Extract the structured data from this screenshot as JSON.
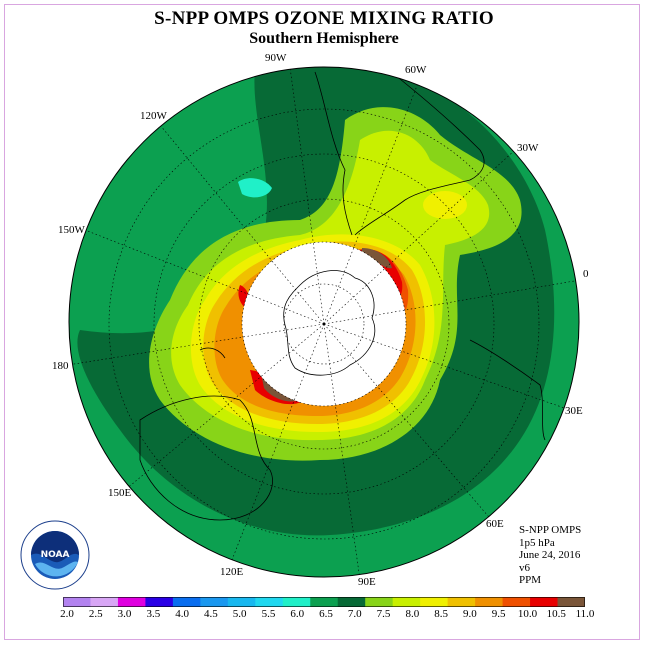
{
  "header": {
    "title": "S-NPP OMPS OZONE MIXING RATIO",
    "subtitle": "Southern Hemisphere"
  },
  "longitude_labels": {
    "w90": "90W",
    "w60": "60W",
    "w30": "30W",
    "zero": "0",
    "w120": "120W",
    "w150": "150W",
    "l180": "180",
    "e30": "30E",
    "e60": "60E",
    "e90": "90E",
    "e120": "120E",
    "e150": "150E"
  },
  "info": {
    "instrument": "S-NPP OMPS",
    "level": "1p5 hPa",
    "date": "June 24, 2016",
    "version": "v6",
    "units": "PPM"
  },
  "colorbar": {
    "ticks": [
      "2.0",
      "2.5",
      "3.0",
      "3.5",
      "4.0",
      "4.5",
      "5.0",
      "5.5",
      "6.0",
      "6.5",
      "7.0",
      "7.5",
      "8.0",
      "8.5",
      "9.0",
      "9.5",
      "10.0",
      "10.5",
      "11.0"
    ],
    "colors": [
      "#b383f0",
      "#d8a6f5",
      "#e000e0",
      "#2a00e6",
      "#0a6ef0",
      "#1a98f0",
      "#18b8f0",
      "#20d8f0",
      "#20f0c8",
      "#0ca050",
      "#076a36",
      "#88d418",
      "#c8f000",
      "#f0f000",
      "#f0c000",
      "#f09000",
      "#f05000",
      "#e80000",
      "#7a5538"
    ]
  },
  "logo": {
    "text": "NOAA",
    "ring_text": "NATIONAL OCEANIC AND ATMOSPHERIC ADMINISTRATION · U.S. DEPARTMENT OF COMMERCE"
  }
}
